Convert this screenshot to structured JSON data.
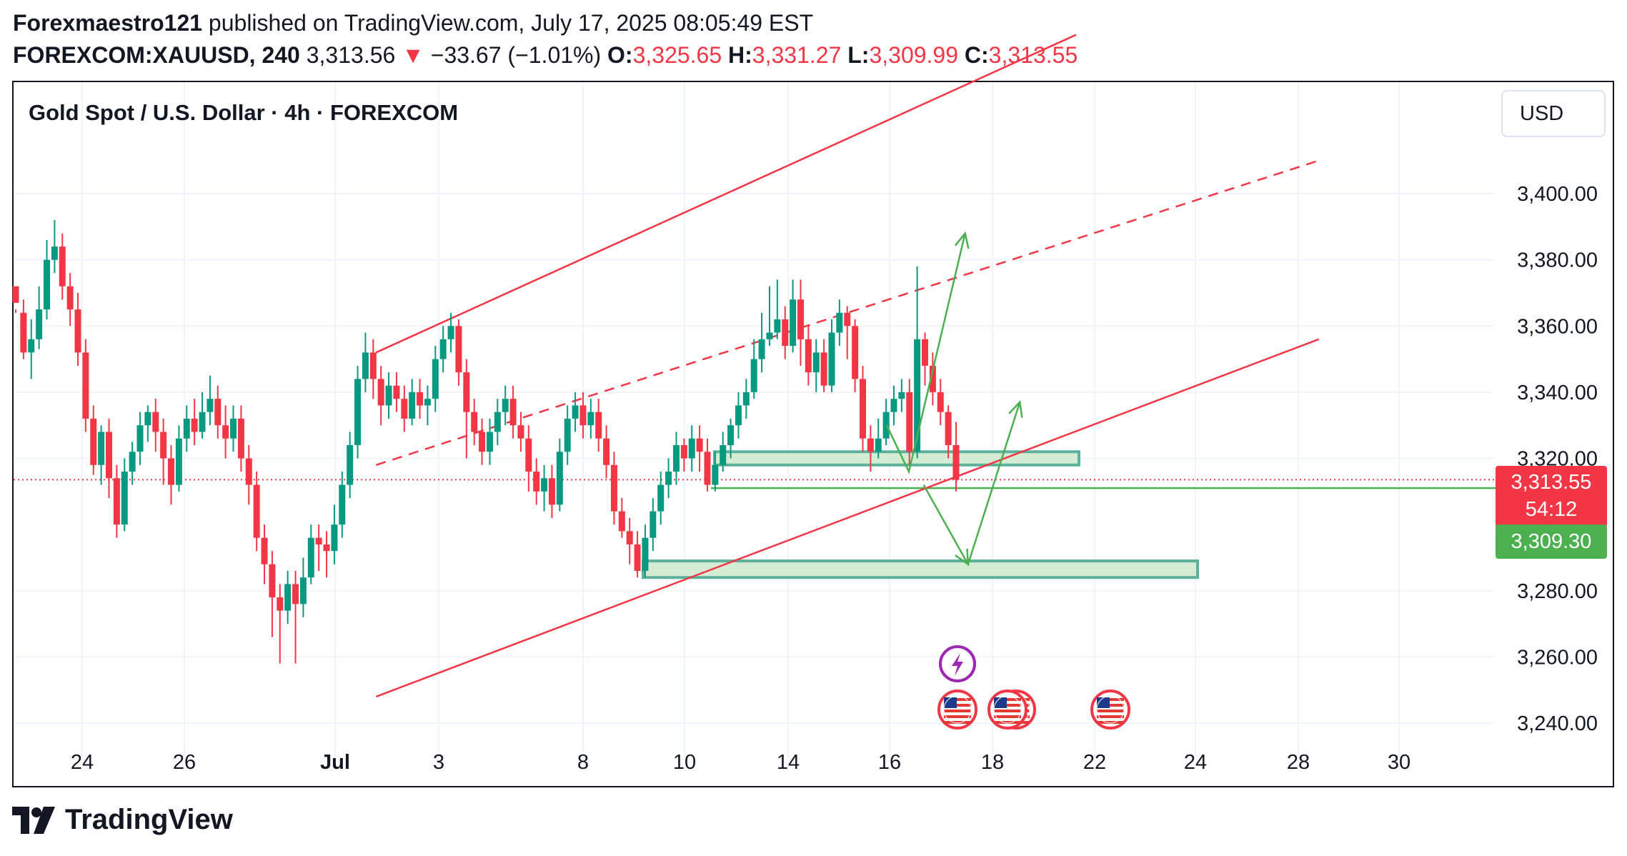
{
  "header": {
    "author": "Forexmaestro121",
    "published_text": " published on TradingView.com, July 17, 2025 08:05:49 EST",
    "symbol": "FOREXCOM:XAUUSD, 240",
    "last": "3,313.56",
    "change_arrow": "▼",
    "change": "−33.67 (−1.01%)",
    "o_label": "O:",
    "o_value": "3,325.65",
    "h_label": "H:",
    "h_value": "3,331.27",
    "l_label": "L:",
    "l_value": "3,309.99",
    "c_label": "C:",
    "c_value": "3,313.55"
  },
  "footer": {
    "brand": "TradingView",
    "brand_icon": "tradingview-logo-icon"
  },
  "colors": {
    "up": "#089981",
    "down": "#f23645",
    "channel": "#f23645",
    "projection": "#4caf50",
    "zone_fill": "#d4ecd4",
    "zone_border": "#5bb19a"
  },
  "chart_data": {
    "type": "candlestick",
    "title": "Gold Spot / U.S. Dollar · 4h · FOREXCOM",
    "currency": "USD",
    "y_axis": {
      "ticks": [
        "3,400.00",
        "3,380.00",
        "3,360.00",
        "3,340.00",
        "3,320.00",
        "3,280.00",
        "3,260.00",
        "3,240.00"
      ],
      "tick_values": [
        3400,
        3380,
        3360,
        3340,
        3320,
        3280,
        3260,
        3240
      ],
      "ylim": [
        3225,
        3442
      ]
    },
    "x_axis": {
      "ticks": [
        "24",
        "26",
        "Jul",
        "3",
        "8",
        "10",
        "14",
        "16",
        "18",
        "22",
        "24",
        "28",
        "30"
      ]
    },
    "current_price": "3,313.55",
    "countdown": "54:12",
    "green_price": "3,309.30",
    "candle_ranges": [
      [
        3367,
        3372,
        3365,
        3364,
        0
      ],
      [
        3364,
        3352,
        3368,
        3350,
        0
      ],
      [
        3352,
        3356,
        3362,
        3344,
        1
      ],
      [
        3356,
        3365,
        3372,
        3353,
        1
      ],
      [
        3365,
        3380,
        3386,
        3362,
        1
      ],
      [
        3380,
        3384,
        3392,
        3376,
        1
      ],
      [
        3384,
        3372,
        3388,
        3368,
        0
      ],
      [
        3372,
        3365,
        3376,
        3360,
        0
      ],
      [
        3365,
        3352,
        3370,
        3348,
        0
      ],
      [
        3352,
        3332,
        3356,
        3328,
        0
      ],
      [
        3332,
        3318,
        3336,
        3315,
        0
      ],
      [
        3318,
        3328,
        3330,
        3312,
        1
      ],
      [
        3328,
        3314,
        3332,
        3308,
        0
      ],
      [
        3314,
        3300,
        3318,
        3296,
        0
      ],
      [
        3300,
        3316,
        3320,
        3298,
        1
      ],
      [
        3316,
        3322,
        3325,
        3312,
        1
      ],
      [
        3322,
        3330,
        3334,
        3318,
        1
      ],
      [
        3330,
        3334,
        3336,
        3325,
        1
      ],
      [
        3334,
        3328,
        3338,
        3322,
        0
      ],
      [
        3328,
        3320,
        3332,
        3312,
        0
      ],
      [
        3320,
        3312,
        3324,
        3306,
        0
      ],
      [
        3312,
        3326,
        3330,
        3310,
        1
      ],
      [
        3326,
        3332,
        3336,
        3322,
        1
      ],
      [
        3332,
        3328,
        3338,
        3324,
        0
      ],
      [
        3328,
        3334,
        3340,
        3326,
        1
      ],
      [
        3334,
        3338,
        3345,
        3330,
        1
      ],
      [
        3338,
        3330,
        3342,
        3326,
        0
      ],
      [
        3330,
        3326,
        3336,
        3320,
        0
      ],
      [
        3326,
        3332,
        3336,
        3322,
        1
      ],
      [
        3332,
        3320,
        3336,
        3316,
        0
      ],
      [
        3320,
        3312,
        3324,
        3306,
        0
      ],
      [
        3312,
        3296,
        3316,
        3292,
        0
      ],
      [
        3296,
        3288,
        3300,
        3282,
        0
      ],
      [
        3288,
        3278,
        3292,
        3266,
        0
      ],
      [
        3278,
        3274,
        3282,
        3258,
        0
      ],
      [
        3274,
        3282,
        3286,
        3270,
        1
      ],
      [
        3282,
        3276,
        3286,
        3258,
        0
      ],
      [
        3276,
        3284,
        3290,
        3272,
        1
      ],
      [
        3284,
        3296,
        3300,
        3282,
        1
      ],
      [
        3296,
        3294,
        3300,
        3286,
        0
      ],
      [
        3294,
        3292,
        3298,
        3284,
        0
      ],
      [
        3292,
        3300,
        3306,
        3288,
        1
      ],
      [
        3300,
        3312,
        3316,
        3296,
        1
      ],
      [
        3312,
        3324,
        3328,
        3308,
        1
      ],
      [
        3324,
        3344,
        3348,
        3320,
        1
      ],
      [
        3344,
        3352,
        3358,
        3340,
        1
      ],
      [
        3352,
        3344,
        3356,
        3338,
        0
      ],
      [
        3344,
        3336,
        3348,
        3330,
        0
      ],
      [
        3336,
        3342,
        3346,
        3332,
        1
      ],
      [
        3342,
        3338,
        3346,
        3334,
        0
      ],
      [
        3338,
        3332,
        3342,
        3328,
        0
      ],
      [
        3332,
        3340,
        3344,
        3330,
        1
      ],
      [
        3340,
        3336,
        3344,
        3332,
        0
      ],
      [
        3336,
        3338,
        3342,
        3330,
        1
      ],
      [
        3338,
        3350,
        3354,
        3334,
        1
      ],
      [
        3350,
        3356,
        3360,
        3346,
        1
      ],
      [
        3356,
        3360,
        3364,
        3352,
        1
      ],
      [
        3360,
        3346,
        3362,
        3342,
        0
      ],
      [
        3346,
        3334,
        3350,
        3320,
        0
      ],
      [
        3334,
        3328,
        3338,
        3324,
        0
      ],
      [
        3328,
        3322,
        3332,
        3318,
        0
      ],
      [
        3322,
        3328,
        3332,
        3318,
        1
      ],
      [
        3328,
        3334,
        3338,
        3324,
        1
      ],
      [
        3334,
        3338,
        3342,
        3330,
        1
      ],
      [
        3338,
        3330,
        3342,
        3326,
        0
      ],
      [
        3330,
        3326,
        3334,
        3322,
        0
      ],
      [
        3326,
        3316,
        3330,
        3310,
        0
      ],
      [
        3316,
        3310,
        3320,
        3306,
        0
      ],
      [
        3310,
        3314,
        3318,
        3304,
        1
      ],
      [
        3314,
        3306,
        3318,
        3302,
        0
      ],
      [
        3306,
        3322,
        3326,
        3304,
        1
      ],
      [
        3322,
        3332,
        3336,
        3318,
        1
      ],
      [
        3332,
        3336,
        3340,
        3328,
        1
      ],
      [
        3336,
        3330,
        3340,
        3326,
        0
      ],
      [
        3330,
        3334,
        3338,
        3326,
        1
      ],
      [
        3334,
        3326,
        3338,
        3322,
        0
      ],
      [
        3326,
        3318,
        3330,
        3314,
        0
      ],
      [
        3318,
        3304,
        3322,
        3300,
        0
      ],
      [
        3304,
        3298,
        3308,
        3296,
        0
      ],
      [
        3298,
        3294,
        3302,
        3288,
        0
      ],
      [
        3294,
        3286,
        3298,
        3284,
        0
      ],
      [
        3286,
        3296,
        3300,
        3284,
        1
      ],
      [
        3296,
        3304,
        3308,
        3292,
        1
      ],
      [
        3304,
        3312,
        3316,
        3300,
        1
      ],
      [
        3312,
        3316,
        3320,
        3308,
        1
      ],
      [
        3316,
        3324,
        3328,
        3312,
        1
      ],
      [
        3324,
        3320,
        3326,
        3316,
        0
      ],
      [
        3320,
        3326,
        3330,
        3316,
        1
      ],
      [
        3326,
        3322,
        3330,
        3316,
        0
      ],
      [
        3322,
        3312,
        3326,
        3310,
        0
      ],
      [
        3312,
        3318,
        3322,
        3310,
        1
      ],
      [
        3318,
        3324,
        3328,
        3316,
        1
      ],
      [
        3324,
        3330,
        3332,
        3320,
        1
      ],
      [
        3330,
        3336,
        3340,
        3326,
        1
      ],
      [
        3336,
        3340,
        3344,
        3332,
        1
      ],
      [
        3340,
        3350,
        3356,
        3338,
        1
      ],
      [
        3350,
        3356,
        3364,
        3346,
        1
      ],
      [
        3356,
        3358,
        3372,
        3354,
        1
      ],
      [
        3358,
        3362,
        3374,
        3356,
        1
      ],
      [
        3362,
        3354,
        3366,
        3350,
        0
      ],
      [
        3354,
        3368,
        3374,
        3352,
        1
      ],
      [
        3368,
        3356,
        3374,
        3348,
        0
      ],
      [
        3356,
        3346,
        3360,
        3342,
        0
      ],
      [
        3346,
        3352,
        3356,
        3340,
        1
      ],
      [
        3352,
        3342,
        3356,
        3340,
        0
      ],
      [
        3342,
        3358,
        3362,
        3340,
        1
      ],
      [
        3358,
        3364,
        3368,
        3354,
        1
      ],
      [
        3364,
        3360,
        3366,
        3350,
        0
      ],
      [
        3360,
        3344,
        3362,
        3340,
        0
      ],
      [
        3344,
        3326,
        3348,
        3322,
        0
      ],
      [
        3326,
        3322,
        3330,
        3316,
        0
      ],
      [
        3322,
        3326,
        3332,
        3320,
        1
      ],
      [
        3326,
        3334,
        3338,
        3324,
        1
      ],
      [
        3334,
        3338,
        3342,
        3330,
        1
      ],
      [
        3338,
        3340,
        3344,
        3334,
        1
      ],
      [
        3340,
        3322,
        3344,
        3318,
        0
      ],
      [
        3322,
        3356,
        3378,
        3320,
        1
      ],
      [
        3356,
        3348,
        3358,
        3342,
        0
      ],
      [
        3348,
        3340,
        3352,
        3336,
        0
      ],
      [
        3340,
        3334,
        3344,
        3330,
        0
      ],
      [
        3334,
        3324,
        3336,
        3320,
        0
      ],
      [
        3324,
        3313.55,
        3331,
        3310,
        0
      ]
    ],
    "channel": {
      "upper": [
        [
          3352,
          0.245
        ],
        [
          3448,
          0.718
        ]
      ],
      "middle_dashed": [
        [
          3318,
          0.245
        ],
        [
          3410,
          0.882
        ]
      ],
      "lower": [
        [
          3248,
          0.245
        ],
        [
          3356,
          0.882
        ]
      ]
    },
    "zones": [
      {
        "low": 3318,
        "high": 3322
      },
      {
        "low": 3284,
        "high": 3289
      }
    ],
    "support_line": 3311,
    "projections": [
      {
        "label": "bullish",
        "path": [
          [
            3330,
            0.59
          ],
          [
            3316,
            0.605
          ],
          [
            3388,
            0.643
          ]
        ]
      },
      {
        "label": "bearish-then-bullish",
        "path": [
          [
            3312,
            0.615
          ],
          [
            3288,
            0.645
          ],
          [
            3337,
            0.68
          ]
        ]
      }
    ],
    "event_icons": [
      "lightning-icon",
      "us-flag-icon",
      "us-flag-icon",
      "us-flag-icon"
    ],
    "grid": true
  }
}
